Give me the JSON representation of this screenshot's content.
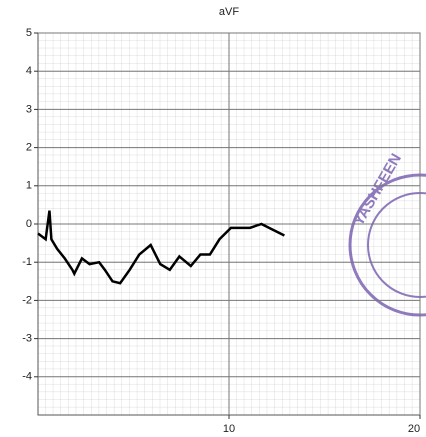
{
  "chart_data": {
    "type": "line",
    "title": "aVF",
    "x": [
      0,
      0.4,
      0.6,
      0.7,
      1.0,
      1.4,
      1.8,
      1.9,
      2.3,
      2.7,
      3.2,
      3.5,
      3.9,
      4.3,
      4.8,
      5.3,
      5.9,
      6.4,
      6.9,
      7.4,
      8.0,
      8.5,
      9.0,
      9.5,
      10.1,
      10.6,
      11.1,
      11.7,
      12.1,
      12.9
    ],
    "series": [
      {
        "name": "aVF",
        "color": "#000000",
        "values": [
          -0.25,
          -0.4,
          0.35,
          -0.4,
          -0.65,
          -0.9,
          -1.2,
          -1.3,
          -0.9,
          -1.05,
          -1.0,
          -1.2,
          -1.5,
          -1.55,
          -1.2,
          -0.8,
          -0.55,
          -1.05,
          -1.2,
          -0.85,
          -1.1,
          -0.8,
          -0.8,
          -0.4,
          -0.1,
          -0.1,
          -0.1,
          0,
          -0.1,
          -0.3
        ]
      }
    ],
    "xlim": [
      0,
      20
    ],
    "xticks": [
      10,
      20
    ],
    "ylim": [
      -5,
      5
    ],
    "yticks": [
      5,
      4,
      3,
      2,
      1,
      0,
      -1,
      -2,
      -3,
      -4
    ],
    "grid": true,
    "stamp_text": "YASHFEEN"
  }
}
